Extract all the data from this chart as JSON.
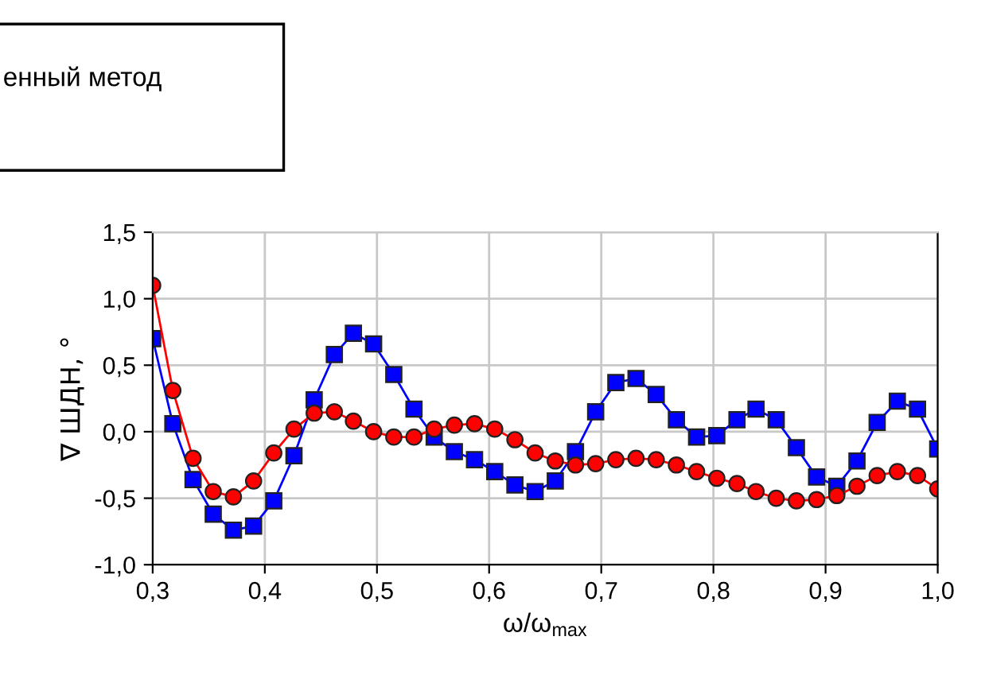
{
  "chart_data": {
    "type": "line",
    "xlabel": "ω/ω$_{max}$",
    "ylabel": "∇ ШДН, °",
    "annotations": [
      "енный метод"
    ],
    "x": [
      0.3,
      0.318,
      0.336,
      0.354,
      0.372,
      0.39,
      0.408,
      0.426,
      0.444,
      0.462,
      0.479,
      0.497,
      0.515,
      0.533,
      0.551,
      0.569,
      0.587,
      0.605,
      0.623,
      0.641,
      0.659,
      0.677,
      0.695,
      0.713,
      0.731,
      0.749,
      0.767,
      0.785,
      0.803,
      0.821,
      0.838,
      0.856,
      0.874,
      0.892,
      0.91,
      0.928,
      0.946,
      0.964,
      0.982,
      1.0
    ],
    "series": [
      {
        "color": "#0000ff",
        "marker": "square",
        "values": [
          0.7,
          0.06,
          -0.36,
          -0.62,
          -0.74,
          -0.71,
          -0.52,
          -0.18,
          0.24,
          0.58,
          0.74,
          0.66,
          0.43,
          0.17,
          -0.04,
          -0.15,
          -0.21,
          -0.3,
          -0.4,
          -0.45,
          -0.37,
          -0.15,
          0.15,
          0.37,
          0.4,
          0.28,
          0.09,
          -0.04,
          -0.03,
          0.09,
          0.17,
          0.09,
          -0.12,
          -0.34,
          -0.41,
          -0.22,
          0.07,
          0.23,
          0.17,
          -0.13
        ]
      },
      {
        "color": "#ff0000",
        "marker": "circle",
        "values": [
          1.1,
          0.31,
          -0.2,
          -0.45,
          -0.49,
          -0.37,
          -0.16,
          0.02,
          0.14,
          0.15,
          0.08,
          0.0,
          -0.04,
          -0.04,
          0.02,
          0.05,
          0.06,
          0.02,
          -0.06,
          -0.16,
          -0.22,
          -0.25,
          -0.24,
          -0.21,
          -0.2,
          -0.21,
          -0.25,
          -0.3,
          -0.35,
          -0.39,
          -0.45,
          -0.5,
          -0.52,
          -0.51,
          -0.48,
          -0.41,
          -0.33,
          -0.3,
          -0.33,
          -0.43
        ]
      }
    ],
    "xlim": [
      0.3,
      1.0
    ],
    "xticks": [
      {
        "value": 0.3,
        "label": "0,3"
      },
      {
        "value": 0.4,
        "label": "0,4"
      },
      {
        "value": 0.5,
        "label": "0,5"
      },
      {
        "value": 0.6,
        "label": "0,6"
      },
      {
        "value": 0.7,
        "label": "0,7"
      },
      {
        "value": 0.8,
        "label": "0,8"
      },
      {
        "value": 0.9,
        "label": "0,9"
      },
      {
        "value": 1.0,
        "label": "1,0"
      }
    ],
    "ylim": [
      -1.0,
      1.5
    ],
    "yticks": [
      {
        "value": -1.0,
        "label": "-1,0"
      },
      {
        "value": -0.5,
        "label": "-0,5"
      },
      {
        "value": 0.0,
        "label": "0,0"
      },
      {
        "value": 0.5,
        "label": "0,5"
      },
      {
        "value": 1.0,
        "label": "1,0"
      },
      {
        "value": 1.5,
        "label": "1,5"
      }
    ],
    "grid": true,
    "line_style": "solid"
  }
}
